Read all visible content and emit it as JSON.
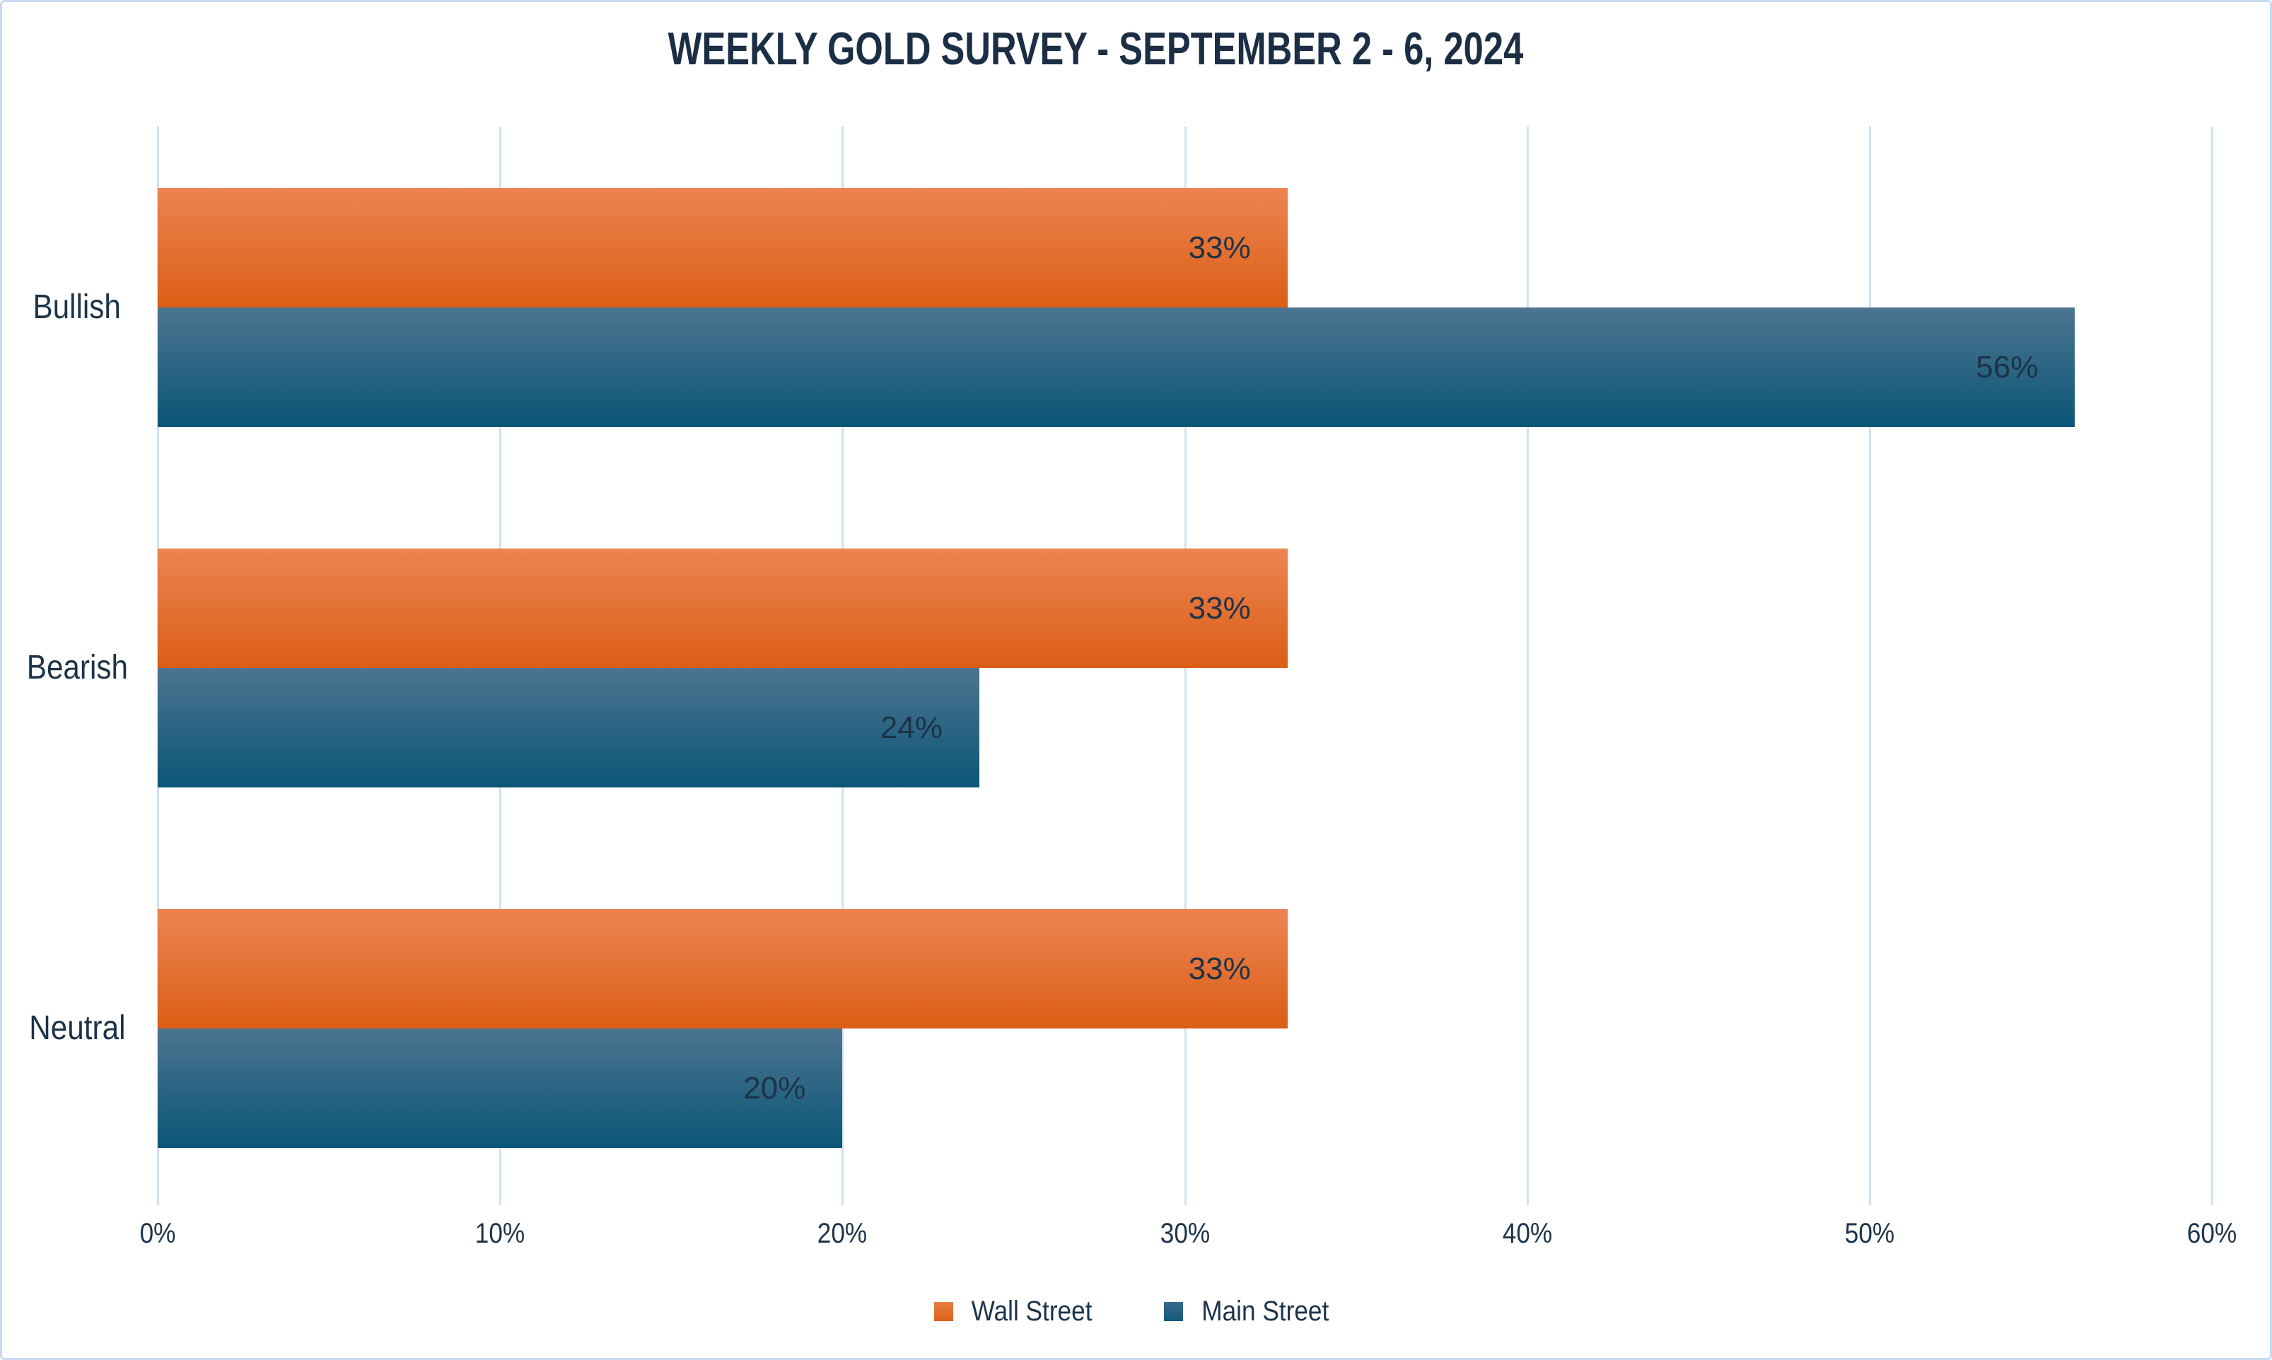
{
  "title": "WEEKLY GOLD SURVEY - SEPTEMBER 2 - 6, 2024",
  "chart_data": {
    "type": "bar",
    "orientation": "horizontal",
    "title": "WEEKLY GOLD SURVEY - SEPTEMBER 2 - 6, 2024",
    "categories": [
      "Bullish",
      "Bearish",
      "Neutral"
    ],
    "series": [
      {
        "name": "Wall Street",
        "values": [
          33,
          33,
          33
        ],
        "labels": [
          "33%",
          "33%",
          "33%"
        ],
        "color_top": "#EC8452",
        "color_bottom": "#DB5E15"
      },
      {
        "name": "Main Street",
        "values": [
          56,
          24,
          20
        ],
        "labels": [
          "56%",
          "24%",
          "20%"
        ],
        "color_top": "#4C7590",
        "color_bottom": "#0B5677"
      }
    ],
    "xlabel": "",
    "ylabel": "",
    "x_ticks": [
      "0%",
      "10%",
      "20%",
      "30%",
      "40%",
      "50%",
      "60%"
    ],
    "xlim": [
      0,
      60
    ],
    "grid": "vertical",
    "legend_position": "bottom",
    "colors": {
      "gridline": "#cfe2f3",
      "frame_border": "#c7dcf2",
      "text": "#1d3349",
      "title_text": "#1b2e44",
      "background": "#ffffff"
    }
  }
}
